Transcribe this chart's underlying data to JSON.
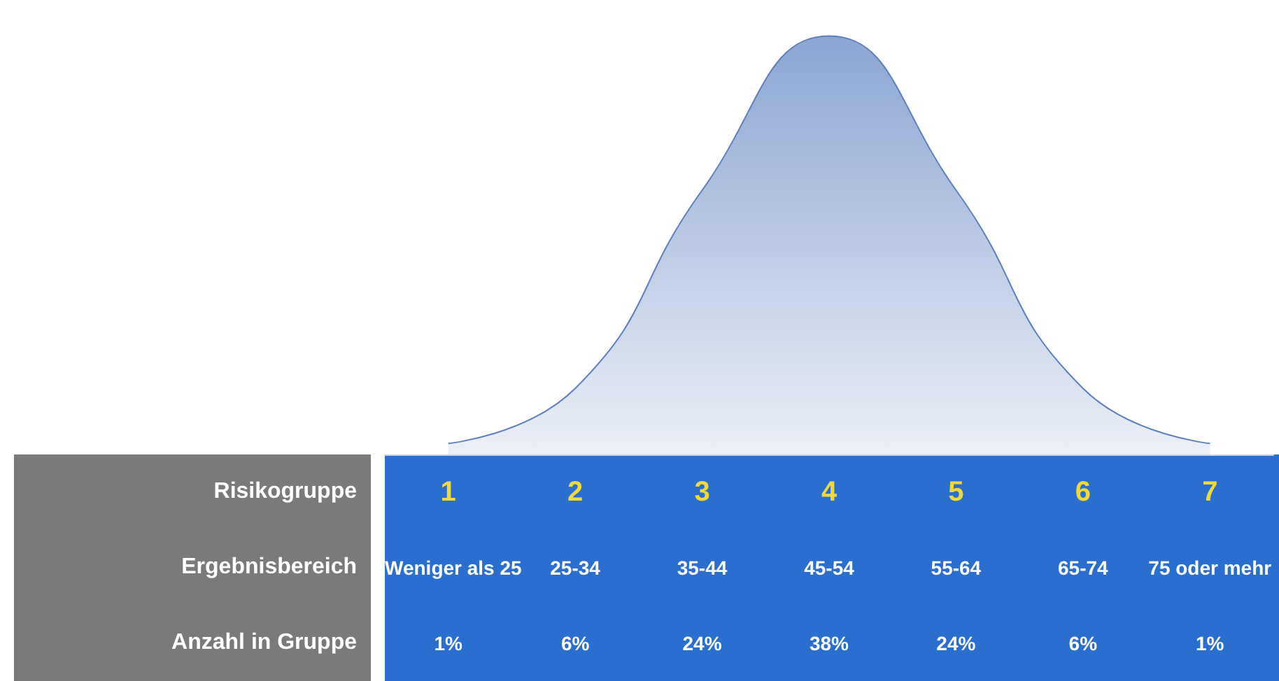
{
  "chart_data": {
    "type": "area",
    "xlabel": "Risikogruppe",
    "categories": [
      "1",
      "2",
      "3",
      "4",
      "5",
      "6",
      "7"
    ],
    "values": [
      1,
      6,
      24,
      38,
      24,
      6,
      1
    ],
    "value_labels": [
      "1%",
      "6%",
      "24%",
      "38%",
      "24%",
      "6%",
      "1%"
    ],
    "color": "#5a7fbf",
    "annotations": [
      "Ergebnisbereich",
      "Weniger als 25",
      "25-34",
      "35-44",
      "45-54",
      "55-64",
      "65-74",
      "75 oder mehr",
      "Anzahl in Gruppe"
    ],
    "grid": false
  }
}
